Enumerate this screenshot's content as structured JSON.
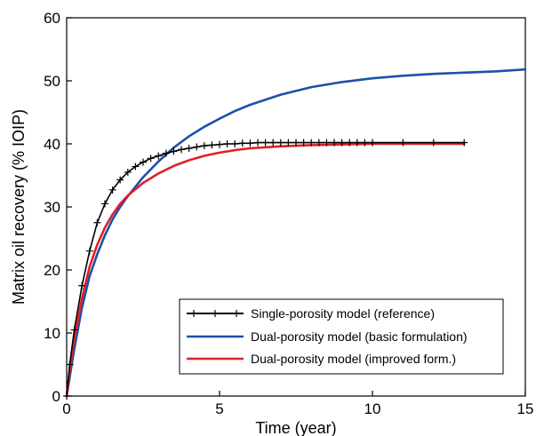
{
  "chart_data": {
    "type": "line",
    "title": "",
    "xlabel": "Time (year)",
    "ylabel": "Matrix oil recovery (% IOIP)",
    "xlim": [
      0,
      15
    ],
    "ylim": [
      0,
      60
    ],
    "x_ticks": [
      "0",
      "5",
      "10",
      "15"
    ],
    "y_ticks": [
      "0",
      "10",
      "20",
      "30",
      "40",
      "50",
      "60"
    ],
    "grid": false,
    "legend_position": "bottom-right",
    "series": [
      {
        "name": "Single-porosity model (reference)",
        "color": "#000000",
        "marker": "plus",
        "x": [
          0,
          0.1,
          0.25,
          0.5,
          0.75,
          1.0,
          1.25,
          1.5,
          1.75,
          2.0,
          2.25,
          2.5,
          2.75,
          3.0,
          3.25,
          3.5,
          3.75,
          4.0,
          4.25,
          4.5,
          4.75,
          5.0,
          5.25,
          5.5,
          5.75,
          6.0,
          6.25,
          6.5,
          6.75,
          7.0,
          7.25,
          7.5,
          7.75,
          8.0,
          8.25,
          8.5,
          8.75,
          9.0,
          9.25,
          9.5,
          9.75,
          10.0,
          11.0,
          12.0,
          13.0
        ],
        "y": [
          0,
          5.0,
          10.5,
          17.5,
          23.0,
          27.5,
          30.5,
          32.7,
          34.3,
          35.5,
          36.4,
          37.1,
          37.7,
          38.1,
          38.5,
          38.8,
          39.1,
          39.3,
          39.5,
          39.7,
          39.8,
          39.9,
          40.0,
          40.0,
          40.1,
          40.1,
          40.2,
          40.2,
          40.2,
          40.2,
          40.2,
          40.2,
          40.2,
          40.2,
          40.2,
          40.2,
          40.2,
          40.2,
          40.2,
          40.2,
          40.2,
          40.2,
          40.2,
          40.2,
          40.2
        ]
      },
      {
        "name": "Dual-porosity model (basic formulation)",
        "color": "#1f4fa8",
        "marker": "none",
        "x": [
          0,
          0.1,
          0.25,
          0.5,
          0.75,
          1.0,
          1.25,
          1.5,
          1.75,
          2.0,
          2.5,
          3.0,
          3.5,
          4.0,
          4.5,
          5.0,
          5.5,
          6.0,
          7.0,
          8.0,
          9.0,
          10.0,
          11.0,
          12.0,
          13.0,
          14.0,
          15.0
        ],
        "y": [
          0,
          3.0,
          7.5,
          14.0,
          19.0,
          22.5,
          25.5,
          28.0,
          30.0,
          31.7,
          34.7,
          37.2,
          39.4,
          41.2,
          42.7,
          44.0,
          45.2,
          46.2,
          47.8,
          49.0,
          49.8,
          50.4,
          50.8,
          51.1,
          51.3,
          51.5,
          51.8
        ]
      },
      {
        "name": "Dual-porosity model (improved form.)",
        "color": "#e0202a",
        "marker": "none",
        "x": [
          0,
          0.1,
          0.25,
          0.5,
          0.75,
          1.0,
          1.25,
          1.5,
          1.75,
          2.0,
          2.5,
          3.0,
          3.5,
          4.0,
          4.5,
          5.0,
          5.5,
          6.0,
          7.0,
          8.0,
          9.0,
          10.0,
          11.0,
          12.0,
          13.0
        ],
        "y": [
          0,
          4.0,
          9.0,
          15.5,
          20.5,
          24.0,
          26.7,
          28.8,
          30.5,
          31.8,
          33.8,
          35.3,
          36.5,
          37.4,
          38.1,
          38.6,
          39.0,
          39.3,
          39.6,
          39.8,
          39.9,
          40.0,
          40.0,
          40.0,
          40.0
        ]
      }
    ]
  }
}
